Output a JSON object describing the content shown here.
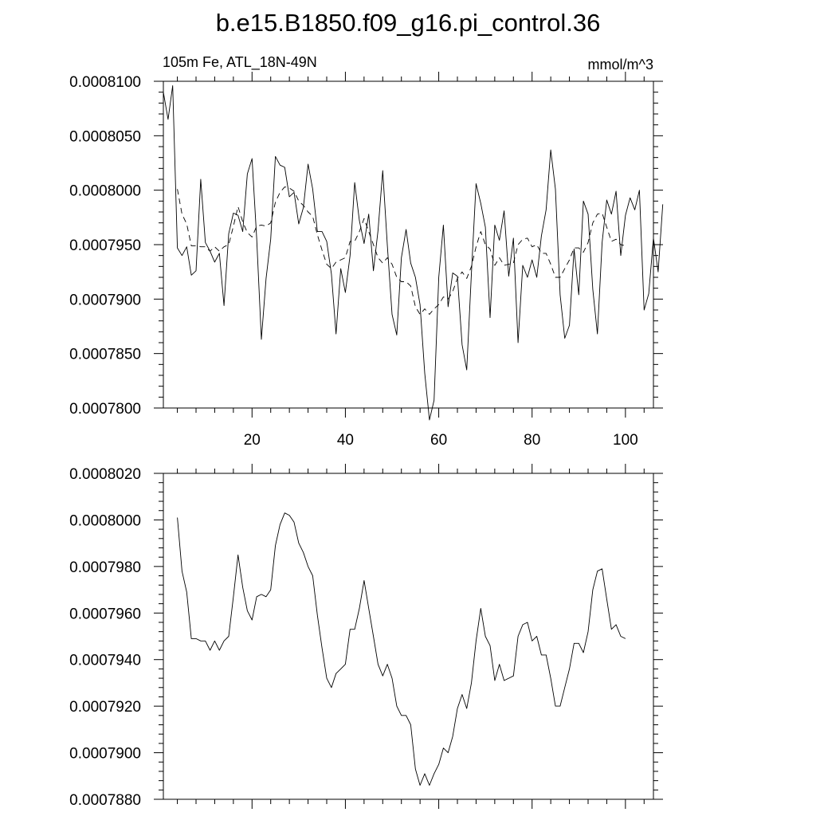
{
  "title": "b.e15.B1850.f09_g16.pi_control.36",
  "chart_data": [
    {
      "type": "line",
      "left_label": "105m Fe, ATL_18N-49N",
      "right_label": "mmol/m^3",
      "xlim": [
        1,
        106
      ],
      "ylim": [
        0.00078,
        0.00081
      ],
      "x_ticks": [
        20,
        40,
        60,
        80,
        100
      ],
      "x_tick_labels": [
        "20",
        "40",
        "60",
        "80",
        "100"
      ],
      "y_ticks": [
        0.00078,
        0.000785,
        0.00079,
        0.000795,
        0.0008,
        0.000805,
        0.00081
      ],
      "y_tick_labels": [
        "0.0007800",
        "0.0007850",
        "0.0007900",
        "0.0007950",
        "0.0008000",
        "0.0008050",
        "0.0008100"
      ],
      "series": [
        {
          "style": "solid",
          "x_start": 1,
          "values": [
            0.000809,
            0.0008065,
            0.0008096,
            0.0007947,
            0.000794,
            0.0007948,
            0.0007922,
            0.0007926,
            0.000801,
            0.0007952,
            0.0007944,
            0.0007934,
            0.0007942,
            0.0007894,
            0.000796,
            0.0007979,
            0.0007977,
            0.0007962,
            0.0008015,
            0.0008029,
            0.0007956,
            0.0007863,
            0.0007919,
            0.0007955,
            0.0008031,
            0.0008023,
            0.0008021,
            0.0007994,
            0.0007998,
            0.0007969,
            0.0007984,
            0.0008024,
            0.0008001,
            0.0007962,
            0.0007962,
            0.0007953,
            0.0007923,
            0.0007868,
            0.0007928,
            0.0007906,
            0.000794,
            0.0008007,
            0.0007972,
            0.0007951,
            0.0007978,
            0.0007926,
            0.0007963,
            0.0008018,
            0.0007949,
            0.0007886,
            0.0007867,
            0.0007938,
            0.0007964,
            0.0007933,
            0.000792,
            0.0007895,
            0.0007832,
            0.0007789,
            0.0007807,
            0.000792,
            0.0007968,
            0.0007893,
            0.0007924,
            0.0007921,
            0.0007858,
            0.0007835,
            0.0007924,
            0.0008006,
            0.0007988,
            0.0007966,
            0.0007883,
            0.0007968,
            0.0007954,
            0.0007981,
            0.0007921,
            0.0007956,
            0.000786,
            0.0007931,
            0.000792,
            0.0007936,
            0.000792,
            0.0007958,
            0.0007982,
            0.0008037,
            0.0008001,
            0.0007904,
            0.0007864,
            0.0007876,
            0.0007946,
            0.0007904,
            0.000799,
            0.0007978,
            0.0007909,
            0.0007868,
            0.0007952,
            0.0007991,
            0.0007978,
            0.0007999,
            0.000794,
            0.0007977,
            0.0007993,
            0.0007982,
            0.0008,
            0.000789,
            0.0007905,
            0.0007956,
            0.0007925,
            0.0007987
          ]
        },
        {
          "style": "dashed",
          "x_start": 4,
          "values": [
            0.0008001,
            0.0007978,
            0.0007969,
            0.0007949,
            0.0007949,
            0.0007948,
            0.0007948,
            0.0007944,
            0.0007948,
            0.0007944,
            0.0007948,
            0.000795,
            0.0007967,
            0.0007985,
            0.0007971,
            0.0007961,
            0.0007957,
            0.0007967,
            0.0007968,
            0.0007967,
            0.000797,
            0.0007989,
            0.0007998,
            0.0008003,
            0.0008002,
            0.0007999,
            0.000799,
            0.0007986,
            0.000798,
            0.0007976,
            0.0007959,
            0.0007945,
            0.0007932,
            0.0007928,
            0.0007934,
            0.0007936,
            0.0007938,
            0.0007953,
            0.0007953,
            0.0007962,
            0.0007974,
            0.0007962,
            0.000795,
            0.0007938,
            0.0007933,
            0.0007938,
            0.0007932,
            0.000792,
            0.0007916,
            0.0007916,
            0.0007912,
            0.0007893,
            0.0007886,
            0.0007891,
            0.0007886,
            0.0007891,
            0.0007895,
            0.0007902,
            0.00079,
            0.0007907,
            0.0007919,
            0.0007925,
            0.0007919,
            0.000793,
            0.0007948,
            0.0007962,
            0.000795,
            0.0007946,
            0.0007931,
            0.0007938,
            0.0007931,
            0.0007932,
            0.0007933,
            0.000795,
            0.0007955,
            0.0007956,
            0.0007948,
            0.000795,
            0.0007942,
            0.0007942,
            0.0007932,
            0.000792,
            0.000792,
            0.0007928,
            0.0007936,
            0.0007947,
            0.0007947,
            0.0007943,
            0.0007952,
            0.000797,
            0.0007978,
            0.0007979,
            0.0007966,
            0.0007953,
            0.0007955,
            0.000795,
            0.0007949
          ]
        }
      ]
    },
    {
      "type": "line",
      "xlim": [
        1,
        106
      ],
      "ylim": [
        0.000788,
        0.000802
      ],
      "x_ticks": [
        20,
        40,
        60,
        80,
        100
      ],
      "y_ticks": [
        0.000788,
        0.00079,
        0.000792,
        0.000794,
        0.000796,
        0.000798,
        0.0008,
        0.000802
      ],
      "y_tick_labels": [
        "0.0007880",
        "0.0007900",
        "0.0007920",
        "0.0007940",
        "0.0007960",
        "0.0007980",
        "0.0008000",
        "0.0008020"
      ],
      "series": [
        {
          "style": "solid",
          "x_start": 4,
          "values": [
            0.0008001,
            0.0007978,
            0.0007969,
            0.0007949,
            0.0007949,
            0.0007948,
            0.0007948,
            0.0007944,
            0.0007948,
            0.0007944,
            0.0007948,
            0.000795,
            0.0007967,
            0.0007985,
            0.0007971,
            0.0007961,
            0.0007957,
            0.0007967,
            0.0007968,
            0.0007967,
            0.000797,
            0.0007989,
            0.0007998,
            0.0008003,
            0.0008002,
            0.0007999,
            0.000799,
            0.0007986,
            0.000798,
            0.0007976,
            0.0007959,
            0.0007945,
            0.0007932,
            0.0007928,
            0.0007934,
            0.0007936,
            0.0007938,
            0.0007953,
            0.0007953,
            0.0007962,
            0.0007974,
            0.0007962,
            0.000795,
            0.0007938,
            0.0007933,
            0.0007938,
            0.0007932,
            0.000792,
            0.0007916,
            0.0007916,
            0.0007912,
            0.0007893,
            0.0007886,
            0.0007891,
            0.0007886,
            0.0007891,
            0.0007895,
            0.0007902,
            0.00079,
            0.0007907,
            0.0007919,
            0.0007925,
            0.0007919,
            0.000793,
            0.0007948,
            0.0007962,
            0.000795,
            0.0007946,
            0.0007931,
            0.0007938,
            0.0007931,
            0.0007932,
            0.0007933,
            0.000795,
            0.0007955,
            0.0007956,
            0.0007948,
            0.000795,
            0.0007942,
            0.0007942,
            0.0007932,
            0.000792,
            0.000792,
            0.0007928,
            0.0007936,
            0.0007947,
            0.0007947,
            0.0007943,
            0.0007952,
            0.000797,
            0.0007978,
            0.0007979,
            0.0007966,
            0.0007953,
            0.0007955,
            0.000795,
            0.0007949
          ]
        }
      ]
    }
  ]
}
